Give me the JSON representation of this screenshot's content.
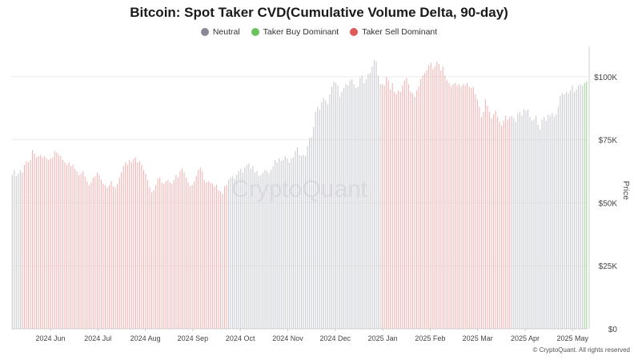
{
  "title": "Bitcoin: Spot Taker CVD(Cumulative Volume Delta, 90-day)",
  "watermark": "CryptoQuant",
  "footer": "© CryptoQuant. All rights reserved",
  "legend": [
    {
      "label": "Neutral",
      "color": "#8a8a96"
    },
    {
      "label": "Taker Buy Dominant",
      "color": "#6cc35a"
    },
    {
      "label": "Taker Sell Dominant",
      "color": "#e05a5a"
    }
  ],
  "colors": {
    "neutral_bar": "#c9cbd1",
    "sell_bar": "#f3b5b5",
    "buy_bar": "#9ad88c",
    "grid": "#ececec",
    "axis_text": "#444444"
  },
  "chart_data": {
    "type": "bar",
    "title": "Bitcoin: Spot Taker CVD(Cumulative Volume Delta, 90-day)",
    "xlabel": "",
    "ylabel": "Price",
    "ylim": [
      0,
      112000
    ],
    "y_ticks": [
      0,
      25000,
      50000,
      75000,
      100000
    ],
    "y_tick_labels": [
      "$0",
      "$25K",
      "$50K",
      "$75K",
      "$100K"
    ],
    "y_axis_side": "right",
    "grid": true,
    "legend_position": "top-center",
    "x_ticks": [
      "2024 Jun",
      "2024 Jul",
      "2024 Aug",
      "2024 Sep",
      "2024 Oct",
      "2024 Nov",
      "2024 Dec",
      "2025 Jan",
      "2025 Feb",
      "2025 Mar",
      "2025 Apr",
      "2025 May"
    ],
    "series": [
      {
        "name": "",
        "segments": [
          {
            "regime": "neutral",
            "values": [
              61000,
              63000,
              60500,
              61500,
              63000
            ]
          },
          {
            "regime": "sell",
            "values": [
              62000,
              65000,
              66500,
              66000,
              67000,
              71000,
              69500,
              68000,
              68500,
              69000,
              68000,
              68500,
              67500,
              67000,
              67500,
              68000,
              70500,
              70000,
              69000,
              68500,
              67000,
              66000,
              65000,
              66000,
              64500,
              65000,
              63500,
              62500,
              61000,
              61500,
              62500,
              60500,
              58500,
              57000,
              58000,
              60000,
              60500,
              62000,
              61000,
              59000,
              57500,
              57000,
              56000,
              57000,
              58500,
              56500,
              56000,
              57500,
              60000,
              62000,
              64500,
              66000,
              65000,
              67000,
              66000,
              67500,
              68000,
              66000,
              66500,
              65000,
              63000,
              61500,
              59000,
              56000,
              54000,
              55000,
              57000,
              59500,
              60000,
              58000,
              57500,
              58500,
              59000,
              58000,
              57500,
              59000,
              61000,
              60000,
              62500,
              63500,
              62000,
              60000,
              58000,
              56500,
              57000,
              58500,
              60500,
              63000,
              64000,
              62500,
              59000,
              58000,
              58500,
              58000,
              57500,
              56500,
              57000,
              55000,
              54500,
              53500,
              56500,
              57000
            ]
          },
          {
            "regime": "neutral",
            "values": [
              59000,
              60000,
              60500,
              59500,
              61000,
              62500,
              63500,
              62000,
              64000,
              65000,
              65500,
              63500,
              64500,
              62000,
              62500,
              60500,
              61000,
              62000,
              63000,
              62500,
              61500,
              63000,
              64500,
              67000,
              66000,
              67500,
              66500,
              67000,
              68500,
              67500,
              66000,
              67500,
              68000,
              70500,
              72000,
              69000,
              68500,
              69000,
              68500,
              72500,
              75500,
              76000,
              80000,
              86000,
              88000,
              87000,
              90000,
              91500,
              90500,
              89000,
              93000,
              96000,
              98000,
              97500,
              96500,
              92000,
              94000,
              95500,
              97000,
              96500,
              98500,
              99000,
              97000,
              95500,
              96000,
              99500,
              100500,
              97500,
              99000,
              101000,
              101500,
              104000,
              106500,
              106000,
              100500,
              97000
            ]
          },
          {
            "regime": "sell",
            "values": [
              97000,
              96500,
              100000,
              98500,
              95000,
              97500,
              94000,
              93000,
              94500,
              94000,
              96500,
              98500,
              99500,
              97000,
              94000,
              93500,
              92000,
              94500,
              96000,
              99000,
              100500,
              101500,
              102500,
              104500,
              105500,
              103000,
              104000,
              106000,
              105000,
              102500,
              104000,
              100500,
              98500,
              97500,
              96000,
              97000,
              97500,
              96500,
              97000,
              96000,
              97000,
              96500,
              97500,
              96000,
              95500,
              96000,
              93000,
              91000,
              88000,
              84000,
              86000,
              91000,
              88500,
              86000,
              83500,
              85000,
              86500,
              84000,
              82000,
              80500,
              82500,
              84500,
              83000,
              84000
            ]
          },
          {
            "regime": "neutral",
            "values": [
              84500,
              83500,
              82000,
              85500,
              86000,
              84500,
              87000,
              86500,
              87000,
              84000,
              82500,
              83000,
              84500,
              81000,
              79000,
              83000,
              84000,
              82500,
              85000,
              84500,
              85500,
              84000,
              85000,
              88000,
              92500,
              93500,
              93000,
              94000,
              93500,
              94500,
              96500,
              94000,
              95000,
              96500,
              97000,
              96500
            ]
          },
          {
            "regime": "buy",
            "values": [
              97500,
              98000
            ]
          }
        ]
      }
    ]
  }
}
